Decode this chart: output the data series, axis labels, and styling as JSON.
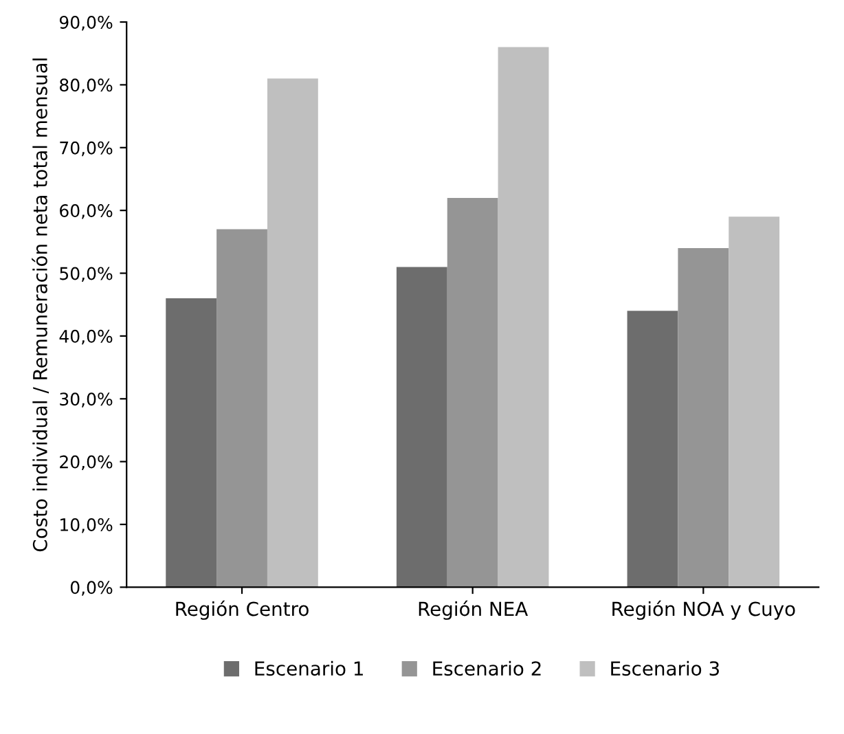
{
  "chart_data": {
    "type": "bar",
    "ylabel": "Costo individual / Remuneración neta total mensual",
    "categories": [
      "Región Centro",
      "Región NEA",
      "Región NOA y Cuyo"
    ],
    "series": [
      {
        "name": "Escenario 1",
        "color": "#6d6d6d",
        "values": [
          46,
          51,
          44
        ]
      },
      {
        "name": "Escenario 2",
        "color": "#959595",
        "values": [
          57,
          62,
          54
        ]
      },
      {
        "name": "Escenario 3",
        "color": "#bfbfbf",
        "values": [
          81,
          86,
          59
        ]
      }
    ],
    "ylim": [
      0,
      90
    ],
    "yticks": [
      {
        "value": 0,
        "label": "0,0%"
      },
      {
        "value": 10,
        "label": "10,0%"
      },
      {
        "value": 20,
        "label": "20,0%"
      },
      {
        "value": 30,
        "label": "30,0%"
      },
      {
        "value": 40,
        "label": "40,0%"
      },
      {
        "value": 50,
        "label": "50,0%"
      },
      {
        "value": 60,
        "label": "60,0%"
      },
      {
        "value": 70,
        "label": "70,0%"
      },
      {
        "value": 80,
        "label": "80,0%"
      },
      {
        "value": 90,
        "label": "90,0%"
      }
    ],
    "grid": false,
    "legend": "bottom"
  }
}
